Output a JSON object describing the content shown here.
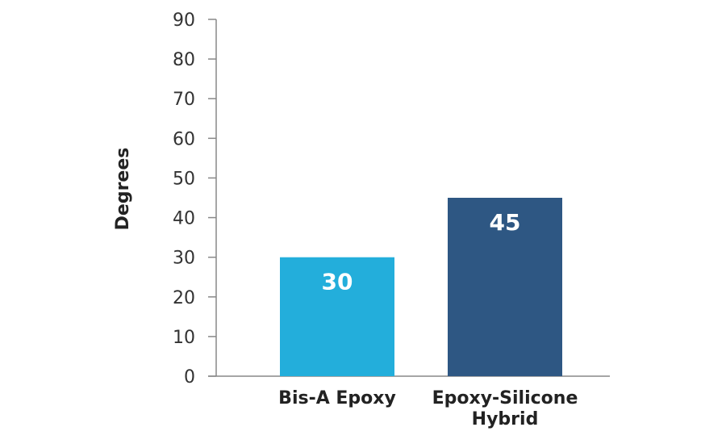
{
  "chart_data": {
    "type": "bar",
    "title": "",
    "xlabel": "",
    "ylabel": "Degrees",
    "ylim": [
      0,
      90
    ],
    "yticks": [
      0,
      10,
      20,
      30,
      40,
      50,
      60,
      70,
      80,
      90
    ],
    "grid": false,
    "categories": [
      "Bis-A Epoxy",
      "Epoxy-Silicone Hybrid"
    ],
    "category_lines": [
      [
        "Bis-A Epoxy"
      ],
      [
        "Epoxy-Silicone",
        "Hybrid"
      ]
    ],
    "values": [
      30,
      45
    ],
    "data_labels": [
      "30",
      "45"
    ],
    "colors": [
      "#23aedb",
      "#2e5783"
    ],
    "axis_color": "#888888"
  }
}
